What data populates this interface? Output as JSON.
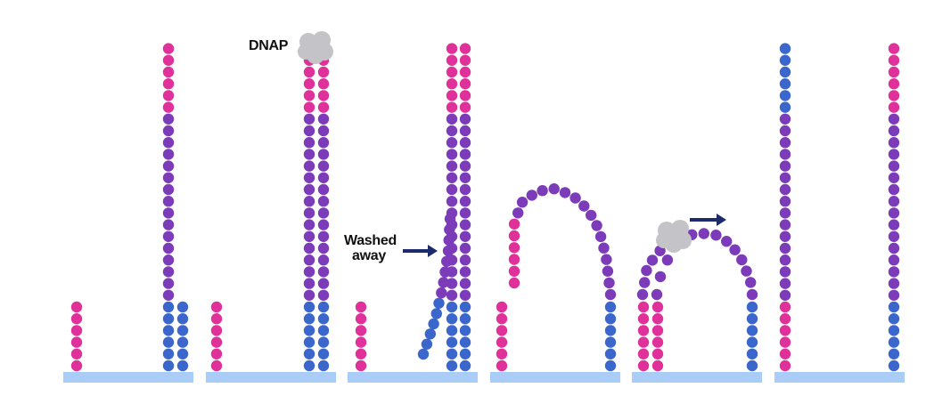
{
  "labels": {
    "dnap": "DNAP",
    "washed_line1": "Washed",
    "washed_line2": "away"
  },
  "colors": {
    "primer": "#e0309a",
    "template": "#7c3bb8",
    "adapter": "#3b66cc",
    "surface": "#a9cdf6",
    "polymerase": "#c4c4c8",
    "arrow": "#1d2a6b"
  },
  "panels": [
    {
      "name": "panel-1"
    },
    {
      "name": "panel-2"
    },
    {
      "name": "panel-3"
    },
    {
      "name": "panel-4"
    },
    {
      "name": "panel-5"
    },
    {
      "name": "panel-6"
    }
  ]
}
